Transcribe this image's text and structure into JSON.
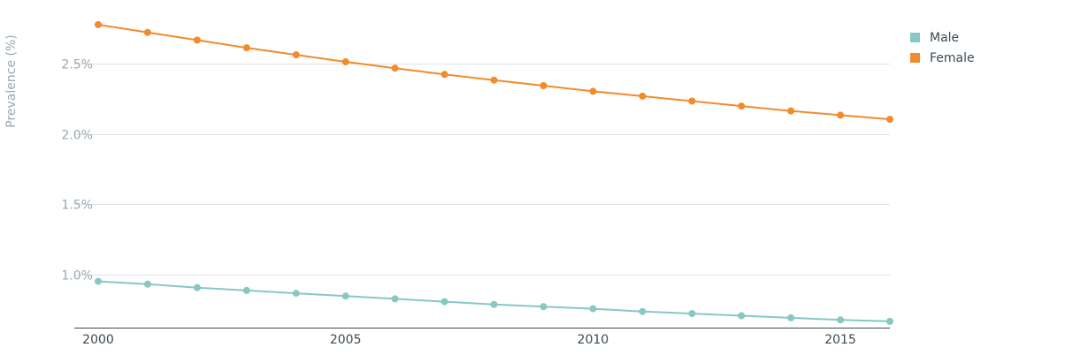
{
  "chart_data": {
    "type": "line",
    "title": "",
    "xlabel": "",
    "ylabel": "Prevalence (%)",
    "x": [
      2000,
      2001,
      2002,
      2003,
      2004,
      2005,
      2006,
      2007,
      2008,
      2009,
      2010,
      2011,
      2012,
      2013,
      2014,
      2015,
      2016
    ],
    "x_ticks": [
      2000,
      2005,
      2010,
      2015
    ],
    "x_tick_labels": [
      "2000",
      "2005",
      "2010",
      "2015"
    ],
    "xlim": [
      2000,
      2016
    ],
    "y_ticks": [
      1.0,
      1.5,
      2.0,
      2.5
    ],
    "y_tick_labels": [
      "1.0%",
      "1.5%",
      "2.0%",
      "2.5%"
    ],
    "ylim": [
      0.62,
      2.83
    ],
    "grid": true,
    "legend_position": "top-right",
    "series": [
      {
        "name": "Male",
        "color": "#86c8c4",
        "values": [
          0.95,
          0.93,
          0.905,
          0.885,
          0.865,
          0.845,
          0.825,
          0.805,
          0.785,
          0.77,
          0.755,
          0.735,
          0.72,
          0.705,
          0.69,
          0.675,
          0.665
        ]
      },
      {
        "name": "Female",
        "color": "#f28b2b",
        "values": [
          2.78,
          2.725,
          2.67,
          2.615,
          2.565,
          2.515,
          2.47,
          2.425,
          2.385,
          2.345,
          2.305,
          2.27,
          2.235,
          2.2,
          2.165,
          2.135,
          2.105
        ]
      }
    ]
  }
}
